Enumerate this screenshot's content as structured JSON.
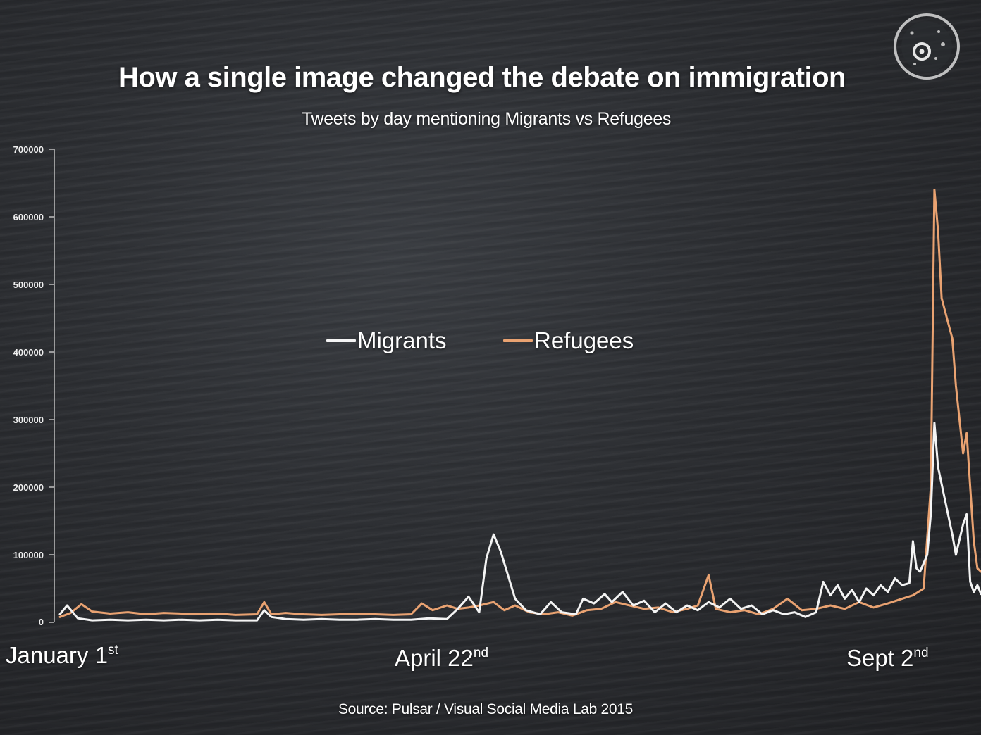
{
  "colors": {
    "migrants": "#f4f4f4",
    "refugees": "#e9a271"
  },
  "logo": {
    "icon": "camera-lens-icon"
  },
  "chart_data": {
    "type": "line",
    "title": "How a single image changed the debate on immigration",
    "subtitle": "Tweets by day mentioning Migrants vs Refugees",
    "source": "Source: Pulsar / Visual Social Media Lab 2015",
    "ylim": [
      0,
      700000
    ],
    "yticks": [
      "700000",
      "600000",
      "500000",
      "400000",
      "300000",
      "200000",
      "100000",
      "0"
    ],
    "x_domain": [
      "2015-01-01",
      "2015-09-15"
    ],
    "x_labels": [
      {
        "main": "January 1",
        "sup": "st",
        "date": "2015-01-01"
      },
      {
        "main": "April 22",
        "sup": "nd",
        "date": "2015-04-22"
      },
      {
        "main": "Sept 2",
        "sup": "nd",
        "date": "2015-09-02"
      }
    ],
    "legend": [
      "Migrants",
      "Refugees"
    ],
    "grid": false,
    "series": [
      {
        "name": "Migrants",
        "color": "#f4f4f4",
        "points": [
          [
            "2015-01-01",
            12000
          ],
          [
            "2015-01-03",
            25000
          ],
          [
            "2015-01-06",
            6000
          ],
          [
            "2015-01-10",
            3000
          ],
          [
            "2015-01-15",
            4000
          ],
          [
            "2015-01-20",
            3000
          ],
          [
            "2015-01-25",
            4000
          ],
          [
            "2015-01-30",
            3000
          ],
          [
            "2015-02-04",
            4000
          ],
          [
            "2015-02-09",
            3000
          ],
          [
            "2015-02-14",
            4000
          ],
          [
            "2015-02-19",
            3000
          ],
          [
            "2015-02-25",
            3000
          ],
          [
            "2015-02-27",
            18000
          ],
          [
            "2015-03-01",
            8000
          ],
          [
            "2015-03-05",
            5000
          ],
          [
            "2015-03-10",
            4000
          ],
          [
            "2015-03-15",
            5000
          ],
          [
            "2015-03-20",
            4000
          ],
          [
            "2015-03-25",
            4000
          ],
          [
            "2015-03-30",
            5000
          ],
          [
            "2015-04-04",
            4000
          ],
          [
            "2015-04-09",
            4000
          ],
          [
            "2015-04-14",
            6000
          ],
          [
            "2015-04-19",
            5000
          ],
          [
            "2015-04-22",
            20000
          ],
          [
            "2015-04-25",
            38000
          ],
          [
            "2015-04-28",
            15000
          ],
          [
            "2015-04-30",
            95000
          ],
          [
            "2015-05-02",
            130000
          ],
          [
            "2015-05-04",
            105000
          ],
          [
            "2015-05-06",
            70000
          ],
          [
            "2015-05-08",
            35000
          ],
          [
            "2015-05-11",
            18000
          ],
          [
            "2015-05-15",
            12000
          ],
          [
            "2015-05-18",
            30000
          ],
          [
            "2015-05-21",
            15000
          ],
          [
            "2015-05-25",
            12000
          ],
          [
            "2015-05-27",
            35000
          ],
          [
            "2015-05-30",
            28000
          ],
          [
            "2015-06-02",
            42000
          ],
          [
            "2015-06-04",
            30000
          ],
          [
            "2015-06-07",
            45000
          ],
          [
            "2015-06-10",
            25000
          ],
          [
            "2015-06-13",
            32000
          ],
          [
            "2015-06-16",
            15000
          ],
          [
            "2015-06-19",
            28000
          ],
          [
            "2015-06-22",
            15000
          ],
          [
            "2015-06-25",
            25000
          ],
          [
            "2015-06-28",
            18000
          ],
          [
            "2015-07-01",
            30000
          ],
          [
            "2015-07-04",
            22000
          ],
          [
            "2015-07-07",
            35000
          ],
          [
            "2015-07-10",
            20000
          ],
          [
            "2015-07-13",
            25000
          ],
          [
            "2015-07-16",
            12000
          ],
          [
            "2015-07-19",
            18000
          ],
          [
            "2015-07-22",
            12000
          ],
          [
            "2015-07-25",
            15000
          ],
          [
            "2015-07-28",
            8000
          ],
          [
            "2015-07-31",
            15000
          ],
          [
            "2015-08-02",
            60000
          ],
          [
            "2015-08-04",
            40000
          ],
          [
            "2015-08-06",
            55000
          ],
          [
            "2015-08-08",
            35000
          ],
          [
            "2015-08-10",
            48000
          ],
          [
            "2015-08-12",
            30000
          ],
          [
            "2015-08-14",
            50000
          ],
          [
            "2015-08-16",
            40000
          ],
          [
            "2015-08-18",
            55000
          ],
          [
            "2015-08-20",
            45000
          ],
          [
            "2015-08-22",
            65000
          ],
          [
            "2015-08-24",
            55000
          ],
          [
            "2015-08-26",
            58000
          ],
          [
            "2015-08-27",
            120000
          ],
          [
            "2015-08-28",
            80000
          ],
          [
            "2015-08-29",
            75000
          ],
          [
            "2015-08-31",
            100000
          ],
          [
            "2015-09-01",
            160000
          ],
          [
            "2015-09-02",
            295000
          ],
          [
            "2015-09-03",
            230000
          ],
          [
            "2015-09-05",
            180000
          ],
          [
            "2015-09-07",
            130000
          ],
          [
            "2015-09-08",
            100000
          ],
          [
            "2015-09-10",
            145000
          ],
          [
            "2015-09-11",
            160000
          ],
          [
            "2015-09-12",
            60000
          ],
          [
            "2015-09-13",
            45000
          ],
          [
            "2015-09-14",
            55000
          ],
          [
            "2015-09-15",
            42000
          ]
        ]
      },
      {
        "name": "Refugees",
        "color": "#e9a271",
        "points": [
          [
            "2015-01-01",
            8000
          ],
          [
            "2015-01-04",
            14000
          ],
          [
            "2015-01-07",
            27000
          ],
          [
            "2015-01-10",
            16000
          ],
          [
            "2015-01-15",
            13000
          ],
          [
            "2015-01-20",
            15000
          ],
          [
            "2015-01-25",
            12000
          ],
          [
            "2015-01-30",
            14000
          ],
          [
            "2015-02-04",
            13000
          ],
          [
            "2015-02-09",
            12000
          ],
          [
            "2015-02-14",
            13000
          ],
          [
            "2015-02-19",
            11000
          ],
          [
            "2015-02-25",
            12000
          ],
          [
            "2015-02-27",
            30000
          ],
          [
            "2015-03-01",
            12000
          ],
          [
            "2015-03-05",
            14000
          ],
          [
            "2015-03-10",
            12000
          ],
          [
            "2015-03-15",
            11000
          ],
          [
            "2015-03-20",
            12000
          ],
          [
            "2015-03-25",
            13000
          ],
          [
            "2015-03-30",
            12000
          ],
          [
            "2015-04-04",
            11000
          ],
          [
            "2015-04-09",
            12000
          ],
          [
            "2015-04-12",
            28000
          ],
          [
            "2015-04-15",
            18000
          ],
          [
            "2015-04-19",
            25000
          ],
          [
            "2015-04-22",
            20000
          ],
          [
            "2015-04-25",
            22000
          ],
          [
            "2015-04-28",
            25000
          ],
          [
            "2015-05-02",
            30000
          ],
          [
            "2015-05-05",
            18000
          ],
          [
            "2015-05-08",
            25000
          ],
          [
            "2015-05-12",
            15000
          ],
          [
            "2015-05-16",
            12000
          ],
          [
            "2015-05-20",
            15000
          ],
          [
            "2015-05-24",
            10000
          ],
          [
            "2015-05-28",
            18000
          ],
          [
            "2015-06-01",
            20000
          ],
          [
            "2015-06-05",
            30000
          ],
          [
            "2015-06-09",
            25000
          ],
          [
            "2015-06-13",
            20000
          ],
          [
            "2015-06-17",
            22000
          ],
          [
            "2015-06-21",
            15000
          ],
          [
            "2015-06-25",
            20000
          ],
          [
            "2015-06-28",
            25000
          ],
          [
            "2015-07-01",
            70000
          ],
          [
            "2015-07-03",
            20000
          ],
          [
            "2015-07-07",
            15000
          ],
          [
            "2015-07-11",
            18000
          ],
          [
            "2015-07-15",
            12000
          ],
          [
            "2015-07-19",
            20000
          ],
          [
            "2015-07-23",
            35000
          ],
          [
            "2015-07-27",
            18000
          ],
          [
            "2015-07-31",
            20000
          ],
          [
            "2015-08-04",
            25000
          ],
          [
            "2015-08-08",
            20000
          ],
          [
            "2015-08-12",
            30000
          ],
          [
            "2015-08-16",
            22000
          ],
          [
            "2015-08-20",
            28000
          ],
          [
            "2015-08-24",
            35000
          ],
          [
            "2015-08-27",
            40000
          ],
          [
            "2015-08-30",
            50000
          ],
          [
            "2015-09-01",
            200000
          ],
          [
            "2015-09-02",
            640000
          ],
          [
            "2015-09-03",
            580000
          ],
          [
            "2015-09-04",
            480000
          ],
          [
            "2015-09-05",
            460000
          ],
          [
            "2015-09-07",
            420000
          ],
          [
            "2015-09-08",
            350000
          ],
          [
            "2015-09-10",
            250000
          ],
          [
            "2015-09-11",
            280000
          ],
          [
            "2015-09-12",
            200000
          ],
          [
            "2015-09-13",
            120000
          ],
          [
            "2015-09-14",
            80000
          ],
          [
            "2015-09-15",
            75000
          ]
        ]
      }
    ]
  }
}
